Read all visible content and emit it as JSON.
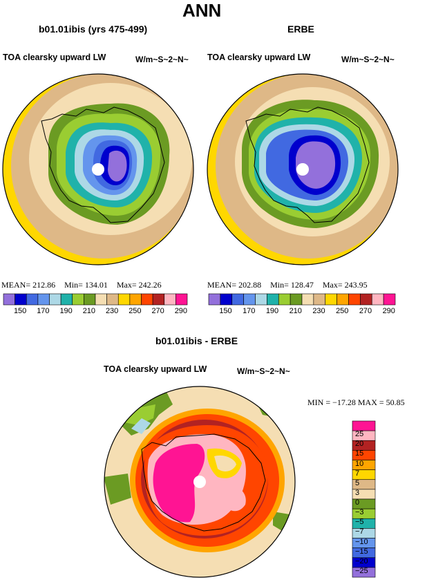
{
  "header": {
    "title": "ANN"
  },
  "panel_left": {
    "case": "b01.01ibis (yrs 475-499)",
    "field": "TOA clearsky upward LW",
    "units": "W/m~S~2~N~",
    "stats": {
      "mean_label": "MEAN=",
      "mean": "212.86",
      "min_label": "Min=",
      "min": "134.01",
      "max_label": "Max=",
      "max": "242.26"
    }
  },
  "panel_right": {
    "case": "ERBE",
    "field": "TOA clearsky upward LW",
    "units": "W/m~S~2~N~",
    "stats": {
      "mean_label": "MEAN=",
      "mean": "202.88",
      "min_label": "Min=",
      "min": "128.47",
      "max_label": "Max=",
      "max": "243.95"
    }
  },
  "panel_diff": {
    "case": "b01.01ibis - ERBE",
    "field": "TOA clearsky upward LW",
    "units": "W/m~S~2~N~",
    "minmax": "MIN = −17.28  MAX =  50.85"
  },
  "colorbar_abs": {
    "ticks": [
      "150",
      "170",
      "190",
      "210",
      "230",
      "250",
      "270",
      "290"
    ],
    "colors": [
      "#9370db",
      "#0000cd",
      "#4169e1",
      "#6495ed",
      "#add8e6",
      "#20b2aa",
      "#9acd32",
      "#6b9b23",
      "#f5deb3",
      "#deb887",
      "#ffd700",
      "#ffa500",
      "#ff4500",
      "#b22222",
      "#ffb6c1",
      "#ff1493"
    ]
  },
  "colorbar_diff": {
    "ticks": [
      "25",
      "20",
      "15",
      "10",
      "7",
      "5",
      "3",
      "0",
      "−3",
      "−5",
      "−7",
      "−10",
      "−15",
      "−20",
      "−25"
    ],
    "colors": [
      "#ff1493",
      "#ffb6c1",
      "#b22222",
      "#ff4500",
      "#ffa500",
      "#ffd700",
      "#deb887",
      "#f5deb3",
      "#6b9b23",
      "#9acd32",
      "#20b2aa",
      "#add8e6",
      "#6495ed",
      "#4169e1",
      "#0000cd",
      "#9370db"
    ]
  }
}
